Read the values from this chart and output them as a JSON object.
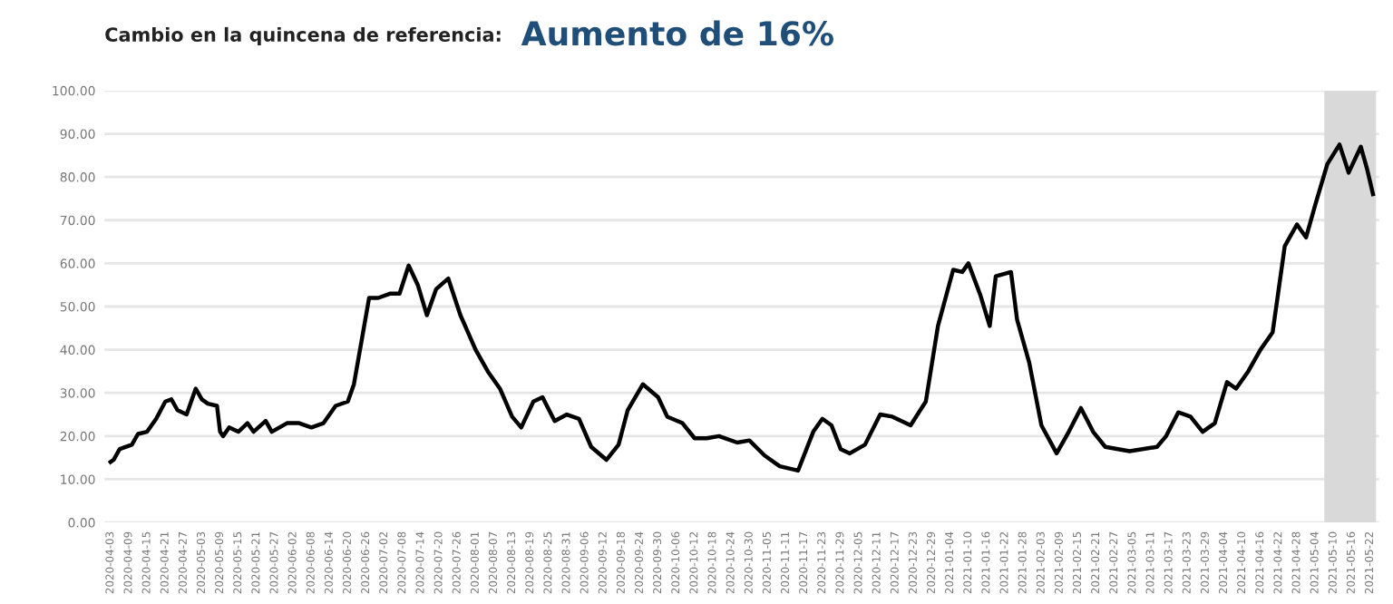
{
  "chart_data": {
    "type": "line",
    "title": "Cambio en la quincena de referencia:",
    "subtitle": "Aumento de 16%",
    "series": [
      {
        "color": "#000000",
        "x": [
          "2020-04-03",
          "2020-04-04",
          "2020-04-06",
          "2020-04-10",
          "2020-04-12",
          "2020-04-15",
          "2020-04-18",
          "2020-04-21",
          "2020-04-23",
          "2020-04-25",
          "2020-04-28",
          "2020-05-01",
          "2020-05-03",
          "2020-05-05",
          "2020-05-08",
          "2020-05-09",
          "2020-05-10",
          "2020-05-12",
          "2020-05-15",
          "2020-05-18",
          "2020-05-20",
          "2020-05-24",
          "2020-05-26",
          "2020-05-31",
          "2020-06-04",
          "2020-06-08",
          "2020-06-12",
          "2020-06-16",
          "2020-06-20",
          "2020-06-22",
          "2020-06-25",
          "2020-06-27",
          "2020-06-30",
          "2020-07-04",
          "2020-07-07",
          "2020-07-10",
          "2020-07-13",
          "2020-07-16",
          "2020-07-19",
          "2020-07-23",
          "2020-07-27",
          "2020-08-01",
          "2020-08-05",
          "2020-08-09",
          "2020-08-13",
          "2020-08-16",
          "2020-08-20",
          "2020-08-23",
          "2020-08-27",
          "2020-08-31",
          "2020-09-04",
          "2020-09-08",
          "2020-09-13",
          "2020-09-17",
          "2020-09-20",
          "2020-09-25",
          "2020-09-30",
          "2020-10-03",
          "2020-10-08",
          "2020-10-12",
          "2020-10-16",
          "2020-10-20",
          "2020-10-26",
          "2020-10-30",
          "2020-11-04",
          "2020-11-09",
          "2020-11-15",
          "2020-11-20",
          "2020-11-23",
          "2020-11-26",
          "2020-11-29",
          "2020-12-02",
          "2020-12-07",
          "2020-12-12",
          "2020-12-16",
          "2020-12-22",
          "2020-12-27",
          "2020-12-31",
          "2021-01-05",
          "2021-01-08",
          "2021-01-10",
          "2021-01-14",
          "2021-01-17",
          "2021-01-19",
          "2021-01-24",
          "2021-01-26",
          "2021-01-30",
          "2021-02-03",
          "2021-02-08",
          "2021-02-12",
          "2021-02-16",
          "2021-02-20",
          "2021-02-24",
          "2021-03-04",
          "2021-03-13",
          "2021-03-16",
          "2021-03-20",
          "2021-03-24",
          "2021-03-28",
          "2021-04-01",
          "2021-04-05",
          "2021-04-08",
          "2021-04-12",
          "2021-04-16",
          "2021-04-20",
          "2021-04-24",
          "2021-04-28",
          "2021-05-01",
          "2021-05-04",
          "2021-05-08",
          "2021-05-12",
          "2021-05-15",
          "2021-05-19",
          "2021-05-21",
          "2021-05-23"
        ],
        "values": [
          14,
          14.5,
          17,
          18,
          20.5,
          21,
          24,
          28,
          28.5,
          26,
          25,
          31,
          28.5,
          27.5,
          27,
          21,
          20,
          22,
          21,
          23,
          21,
          23.5,
          21,
          23,
          23,
          22,
          23,
          27,
          28,
          32,
          44,
          52,
          52,
          53,
          53,
          59.5,
          55,
          48,
          54,
          56.5,
          48,
          40,
          35,
          31,
          24.5,
          22,
          28,
          29,
          23.5,
          25,
          24,
          17.5,
          14.5,
          18,
          26,
          32,
          29,
          24.5,
          23,
          19.5,
          19.5,
          20,
          18.5,
          19,
          15.5,
          13,
          12,
          21,
          24,
          22.5,
          17,
          16,
          18,
          25,
          24.5,
          22.5,
          28,
          45.5,
          58.5,
          58,
          60,
          52.5,
          45.5,
          57,
          58,
          47,
          37,
          22.5,
          16,
          21,
          26.5,
          21,
          17.5,
          16.5,
          17.5,
          20,
          25.5,
          24.5,
          21,
          23,
          32.5,
          31,
          35,
          40,
          44,
          64,
          69,
          66,
          73.5,
          83,
          87.5,
          81,
          87,
          82,
          76
        ]
      }
    ],
    "xlim": [
      "2020-04-01",
      "2021-05-25"
    ],
    "xticks": [
      "2020-04-03",
      "2020-04-09",
      "2020-04-15",
      "2020-04-21",
      "2020-04-27",
      "2020-05-03",
      "2020-05-09",
      "2020-05-15",
      "2020-05-21",
      "2020-05-27",
      "2020-06-02",
      "2020-06-08",
      "2020-06-14",
      "2020-06-20",
      "2020-06-26",
      "2020-07-02",
      "2020-07-08",
      "2020-07-14",
      "2020-07-20",
      "2020-07-26",
      "2020-08-01",
      "2020-08-07",
      "2020-08-13",
      "2020-08-19",
      "2020-08-25",
      "2020-08-31",
      "2020-09-06",
      "2020-09-12",
      "2020-09-18",
      "2020-09-24",
      "2020-09-30",
      "2020-10-06",
      "2020-10-12",
      "2020-10-18",
      "2020-10-24",
      "2020-10-30",
      "2020-11-05",
      "2020-11-11",
      "2020-11-17",
      "2020-11-23",
      "2020-11-29",
      "2020-12-05",
      "2020-12-11",
      "2020-12-17",
      "2020-12-23",
      "2020-12-29",
      "2021-01-04",
      "2021-01-10",
      "2021-01-16",
      "2021-01-22",
      "2021-01-28",
      "2021-02-03",
      "2021-02-09",
      "2021-02-15",
      "2021-02-21",
      "2021-02-27",
      "2021-03-05",
      "2021-03-11",
      "2021-03-17",
      "2021-03-23",
      "2021-03-29",
      "2021-04-04",
      "2021-04-10",
      "2021-04-16",
      "2021-04-22",
      "2021-04-28",
      "2021-05-04",
      "2021-05-10",
      "2021-05-16",
      "2021-05-22"
    ],
    "ylim": [
      0,
      100
    ],
    "yticks": [
      {
        "value": 0,
        "label": "0.00"
      },
      {
        "value": 10,
        "label": "10.00"
      },
      {
        "value": 20,
        "label": "20.00"
      },
      {
        "value": 30,
        "label": "30.00"
      },
      {
        "value": 40,
        "label": "40.00"
      },
      {
        "value": 50,
        "label": "50.00"
      },
      {
        "value": 60,
        "label": "60.00"
      },
      {
        "value": 70,
        "label": "70.00"
      },
      {
        "value": 80,
        "label": "80.00"
      },
      {
        "value": 90,
        "label": "90.00"
      },
      {
        "value": 100,
        "label": "100.00"
      }
    ],
    "bands": [
      {
        "axis": "x",
        "from": "2021-05-07",
        "to": "2021-05-24",
        "color": "#d9d9d9"
      }
    ],
    "grid": "y",
    "marker": "none",
    "line_style": "solid",
    "legend": false
  }
}
